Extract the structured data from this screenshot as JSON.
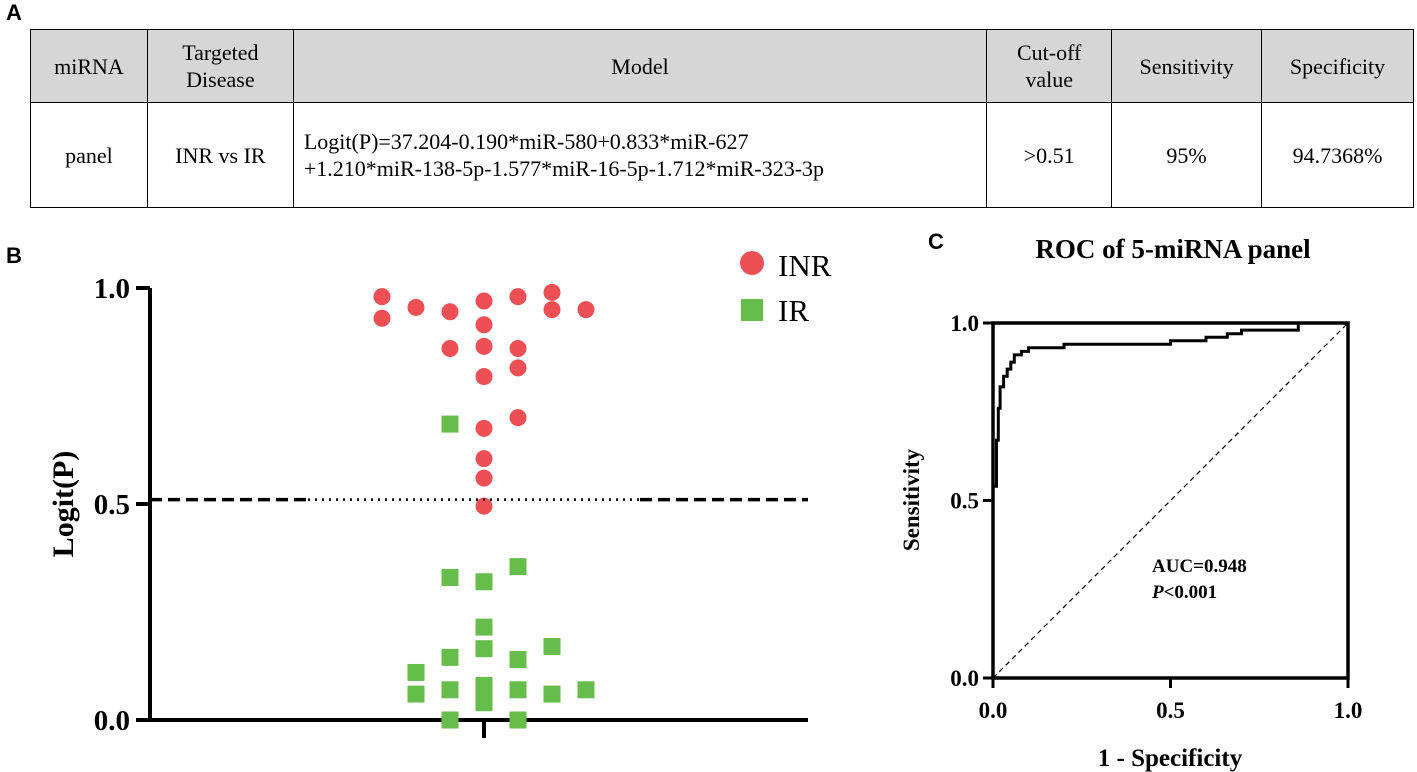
{
  "panels": {
    "a": "A",
    "b": "B",
    "c": "C"
  },
  "table": {
    "headers": {
      "mirna": "miRNA",
      "disease_line1": "Targeted",
      "disease_line2": "Disease",
      "model": "Model",
      "cutoff_line1": "Cut-off",
      "cutoff_line2": "value",
      "sensitivity": "Sensitivity",
      "specificity": "Specificity"
    },
    "row": {
      "mirna": "panel",
      "disease": "INR vs IR",
      "model_line1": "Logit(P)=37.204-0.190*miR-580+0.833*miR-627",
      "model_line2": "+1.210*miR-138-5p-1.577*miR-16-5p-1.712*miR-323-3p",
      "cutoff": ">0.51",
      "sensitivity": "95%",
      "specificity": "94.7368%"
    }
  },
  "colors": {
    "inr": "#ee4f54",
    "ir": "#67bd4b",
    "axis": "#000000"
  },
  "chart_data": [
    {
      "type": "scatter",
      "title": "",
      "xlabel": "",
      "ylabel": "Logit(P)",
      "ylim": [
        0,
        1
      ],
      "yticks": [
        0.0,
        0.5,
        1.0
      ],
      "ytick_labels": [
        "0.0",
        "0.5",
        "1.0"
      ],
      "cutoff": 0.51,
      "legend": {
        "placement": "top-right",
        "entries": [
          "INR",
          "IR"
        ]
      },
      "series": [
        {
          "name": "INR",
          "marker": "circle",
          "points": [
            {
              "col": -3,
              "y": 0.98
            },
            {
              "col": -3,
              "y": 0.93
            },
            {
              "col": -2,
              "y": 0.955
            },
            {
              "col": -1,
              "y": 0.945
            },
            {
              "col": -1,
              "y": 0.86
            },
            {
              "col": 0,
              "y": 0.97
            },
            {
              "col": 0,
              "y": 0.915
            },
            {
              "col": 0,
              "y": 0.865
            },
            {
              "col": 0,
              "y": 0.795
            },
            {
              "col": 0,
              "y": 0.675
            },
            {
              "col": 0,
              "y": 0.605
            },
            {
              "col": 0,
              "y": 0.56
            },
            {
              "col": 0,
              "y": 0.495
            },
            {
              "col": 1,
              "y": 0.98
            },
            {
              "col": 1,
              "y": 0.86
            },
            {
              "col": 1,
              "y": 0.815
            },
            {
              "col": 1,
              "y": 0.7
            },
            {
              "col": 2,
              "y": 0.99
            },
            {
              "col": 2,
              "y": 0.95
            },
            {
              "col": 3,
              "y": 0.95
            }
          ]
        },
        {
          "name": "IR",
          "marker": "square",
          "points": [
            {
              "col": -2,
              "y": 0.11
            },
            {
              "col": -2,
              "y": 0.06
            },
            {
              "col": -1,
              "y": 0.685
            },
            {
              "col": -1,
              "y": 0.33
            },
            {
              "col": -1,
              "y": 0.145
            },
            {
              "col": -1,
              "y": 0.07
            },
            {
              "col": -1,
              "y": 0.0
            },
            {
              "col": 0,
              "y": 0.32
            },
            {
              "col": 0,
              "y": 0.215
            },
            {
              "col": 0,
              "y": 0.165
            },
            {
              "col": 0,
              "y": 0.08
            },
            {
              "col": 0,
              "y": 0.065
            },
            {
              "col": 0,
              "y": 0.04
            },
            {
              "col": 1,
              "y": 0.355
            },
            {
              "col": 1,
              "y": 0.14
            },
            {
              "col": 1,
              "y": 0.07
            },
            {
              "col": 1,
              "y": 0.0
            },
            {
              "col": 2,
              "y": 0.17
            },
            {
              "col": 2,
              "y": 0.06
            },
            {
              "col": 3,
              "y": 0.07
            }
          ]
        }
      ]
    },
    {
      "type": "line",
      "title": "ROC of 5-miRNA panel",
      "xlabel": "1 - Specificity",
      "ylabel": "Sensitivity",
      "xlim": [
        0,
        1
      ],
      "ylim": [
        0,
        1
      ],
      "xticks": [
        0.0,
        0.5,
        1.0
      ],
      "xtick_labels": [
        "0.0",
        "0.5",
        "1.0"
      ],
      "yticks": [
        0.0,
        0.5,
        1.0
      ],
      "ytick_labels": [
        "0.0",
        "0.5",
        "1.0"
      ],
      "auc_text": "AUC=0.948",
      "p_italic": "P",
      "p_text": "<0.001",
      "series": [
        {
          "name": "ROC",
          "x": [
            0,
            0,
            0.01,
            0.01,
            0.015,
            0.015,
            0.02,
            0.02,
            0.03,
            0.03,
            0.04,
            0.04,
            0.05,
            0.05,
            0.06,
            0.06,
            0.08,
            0.08,
            0.1,
            0.1,
            0.2,
            0.2,
            0.5,
            0.5,
            0.6,
            0.6,
            0.66,
            0.66,
            0.7,
            0.7,
            0.86,
            0.86,
            1.0
          ],
          "y": [
            0,
            0.54,
            0.54,
            0.67,
            0.67,
            0.76,
            0.76,
            0.82,
            0.82,
            0.85,
            0.85,
            0.87,
            0.87,
            0.89,
            0.89,
            0.91,
            0.91,
            0.92,
            0.92,
            0.93,
            0.93,
            0.94,
            0.94,
            0.95,
            0.95,
            0.96,
            0.96,
            0.97,
            0.97,
            0.98,
            0.98,
            1.0,
            1.0
          ]
        },
        {
          "name": "Reference",
          "x": [
            0,
            1
          ],
          "y": [
            0,
            1
          ]
        }
      ]
    }
  ]
}
